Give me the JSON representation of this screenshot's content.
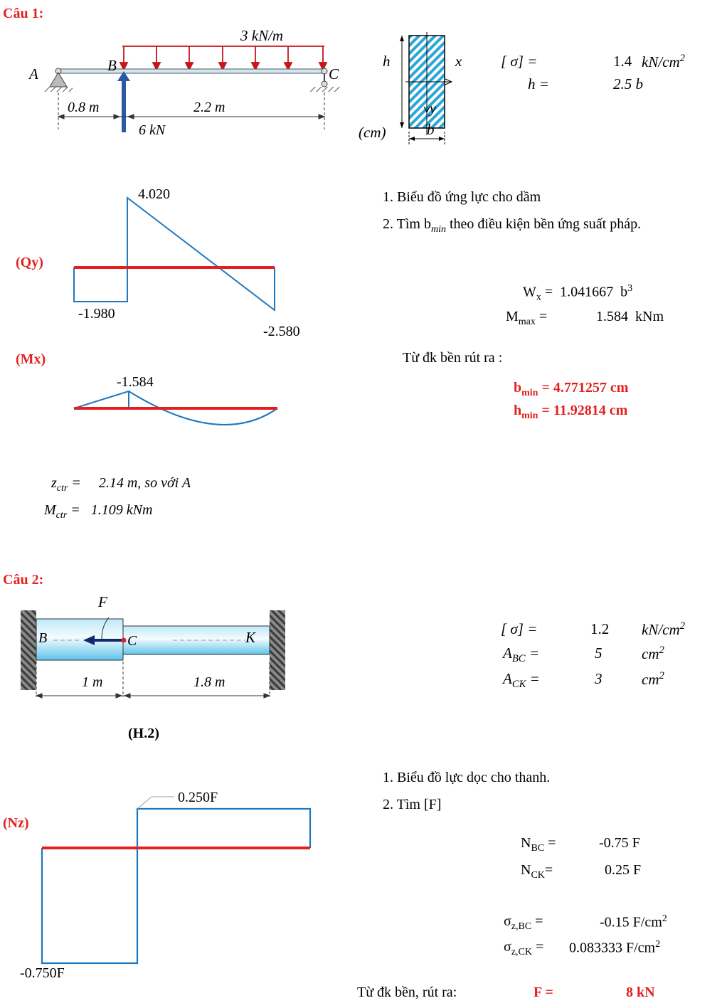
{
  "q1": {
    "title": "Câu 1:",
    "beam": {
      "load": "3  kN/m",
      "point_A": "A",
      "point_B": "B",
      "point_C": "C",
      "dim_left": "0.8  m",
      "dim_right": "2.2  m",
      "force": "6  kN"
    },
    "section": {
      "h": "h",
      "x": "x",
      "y": "y",
      "b": "b",
      "unit": "(cm)"
    },
    "params": {
      "sigma_label": "[  σ] =",
      "sigma_value": "1.4",
      "sigma_unit": "kN/cm",
      "sigma_exp": "2",
      "h_label": "h =",
      "h_value": "2.5  b"
    },
    "tasks": [
      "1.   Biểu đồ ứng lực cho dầm",
      "2.   Tìm b",
      "min",
      " theo điều kiện bền ứng suất pháp."
    ],
    "qy": {
      "label": "(Qy)",
      "v_max": "4.020",
      "v_left": "-1.980",
      "v_right": "-2.580"
    },
    "mx": {
      "label": "(Mx)",
      "v_peak": "-1.584"
    },
    "results": {
      "wx_label": "W",
      "wx_sub": "x",
      "wx_eq": " =",
      "wx_value": "1.041667",
      "wx_unit": "b",
      "wx_exp": "3",
      "mmax_label": "M",
      "mmax_sub": "max",
      "mmax_eq": " =",
      "mmax_value": "1.584",
      "mmax_unit": "kNm",
      "from": "Từ đk bền rút ra :",
      "bmin_label": "b",
      "bmin_sub": "min",
      "bmin_value": " =  4.771257 cm",
      "hmin_label": "h",
      "hmin_sub": "min",
      "hmin_value": " =  11.92814 cm"
    },
    "ctr": {
      "z_label": "z",
      "z_sub": "ctr",
      "z_eq": " =",
      "z_value": "2.14  m, so với A",
      "m_label": "M",
      "m_sub": "ctr",
      "m_eq": " =",
      "m_value": "1.109  kNm"
    }
  },
  "q2": {
    "title": "Câu 2:",
    "bar": {
      "force": "F",
      "point_B": "B",
      "point_C": "C",
      "point_K": "K",
      "dim_left": "1  m",
      "dim_right": "1.8  m",
      "caption": "(H.2)"
    },
    "params": {
      "sigma_label": "[  σ] =",
      "sigma_value": "1.2",
      "sigma_unit": "kN/cm",
      "sigma_exp": "2",
      "abc_label": "A",
      "abc_sub": "BC",
      "abc_eq": " =",
      "abc_value": "5",
      "abc_unit": "cm",
      "abc_exp": "2",
      "ack_label": "A",
      "ack_sub": "CK",
      "ack_eq": " =",
      "ack_value": "3",
      "ack_unit": "cm",
      "ack_exp": "2"
    },
    "tasks": [
      "1.   Biểu đồ lực dọc cho thanh.",
      "2.   Tìm [F]"
    ],
    "nz": {
      "label": "(Nz)",
      "v_pos": "0.250F",
      "v_neg": "-0.750F"
    },
    "results": {
      "nbc_label": "N",
      "nbc_sub": "BC",
      "nbc_eq": " =",
      "nbc_value": "-0.75",
      "nbc_unit": "F",
      "nck_label": "N",
      "nck_sub": "CK",
      "nck_eq": "=",
      "nck_value": "0.25",
      "nck_unit": "F",
      "sbc_label": "σ",
      "sbc_sub": "z,BC",
      "sbc_eq": " =",
      "sbc_value": "-0.15",
      "sbc_unit": "F/cm",
      "sbc_exp": "2",
      "sck_label": "σ",
      "sck_sub": "z,CK",
      "sck_eq": " =",
      "sck_value": "0.083333",
      "sck_unit": "F/cm",
      "sck_exp": "2",
      "from": "Từ đk bền, rút ra:",
      "f_label": "F =",
      "f_value": "8",
      "f_unit": "kN"
    }
  },
  "colors": {
    "heading": "#e41f1f",
    "diagram": "#1f78c0",
    "axis": "#e41f1f",
    "load": "#c8151b",
    "hatch": "#2aa6d8"
  }
}
